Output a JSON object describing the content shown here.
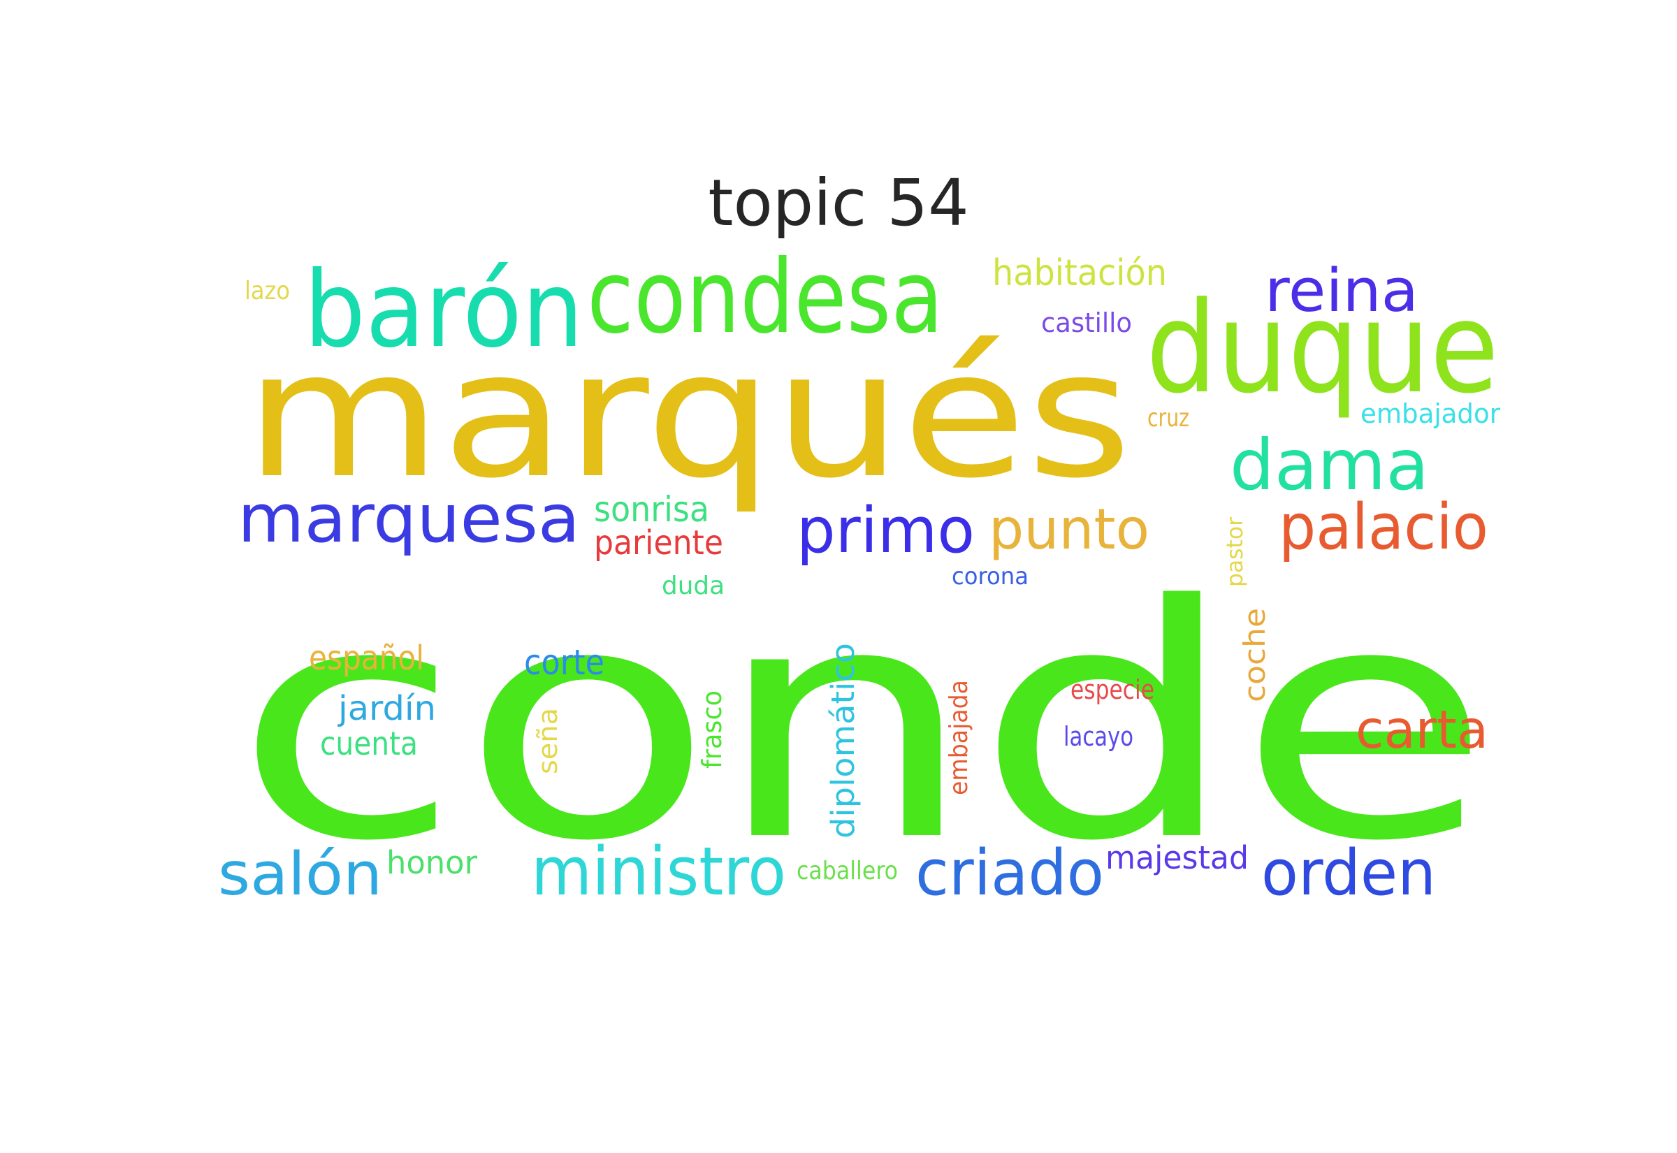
{
  "title": "topic 54",
  "words": [
    {
      "text": "conde",
      "color": "#4ae61c"
    },
    {
      "text": "marqués",
      "color": "#e3bf17"
    },
    {
      "text": "duque",
      "color": "#8ee31d"
    },
    {
      "text": "barón",
      "color": "#17dcae"
    },
    {
      "text": "condesa",
      "color": "#4ae62e"
    },
    {
      "text": "marquesa",
      "color": "#3b3be3"
    },
    {
      "text": "dama",
      "color": "#22e0a0"
    },
    {
      "text": "reina",
      "color": "#4a2ee8"
    },
    {
      "text": "palacio",
      "color": "#e85a30"
    },
    {
      "text": "primo",
      "color": "#3a2ee8"
    },
    {
      "text": "punto",
      "color": "#e8b33a"
    },
    {
      "text": "ministro",
      "color": "#2ed6d6"
    },
    {
      "text": "criado",
      "color": "#2e6ee0"
    },
    {
      "text": "orden",
      "color": "#2e4ae0"
    },
    {
      "text": "carta",
      "color": "#e85a30"
    },
    {
      "text": "salón",
      "color": "#2ea8e0"
    },
    {
      "text": "habitación",
      "color": "#cde340"
    },
    {
      "text": "sonrisa",
      "color": "#3be080"
    },
    {
      "text": "pariente",
      "color": "#e83a3a"
    },
    {
      "text": "castillo",
      "color": "#7a4ae8"
    },
    {
      "text": "embajador",
      "color": "#3ae0e8"
    },
    {
      "text": "cruz",
      "color": "#e8b33a"
    },
    {
      "text": "corona",
      "color": "#3a5ee8"
    },
    {
      "text": "duda",
      "color": "#3be080"
    },
    {
      "text": "pastor",
      "color": "#e3d84a"
    },
    {
      "text": "coche",
      "color": "#e8a83a"
    },
    {
      "text": "español",
      "color": "#e8b33a"
    },
    {
      "text": "corte",
      "color": "#2e8ae8"
    },
    {
      "text": "jardín",
      "color": "#2ea8e0"
    },
    {
      "text": "cuenta",
      "color": "#3be080"
    },
    {
      "text": "seña",
      "color": "#e3d84a"
    },
    {
      "text": "frasco",
      "color": "#4ae62e"
    },
    {
      "text": "diplomático",
      "color": "#2ec4e0"
    },
    {
      "text": "embajada",
      "color": "#e85a30"
    },
    {
      "text": "especie",
      "color": "#e84a4a"
    },
    {
      "text": "lacayo",
      "color": "#5a4ae8"
    },
    {
      "text": "honor",
      "color": "#4ae06a"
    },
    {
      "text": "caballero",
      "color": "#6ae04a"
    },
    {
      "text": "majestad",
      "color": "#5a3ae8"
    },
    {
      "text": "lazo",
      "color": "#e3d84a"
    }
  ]
}
